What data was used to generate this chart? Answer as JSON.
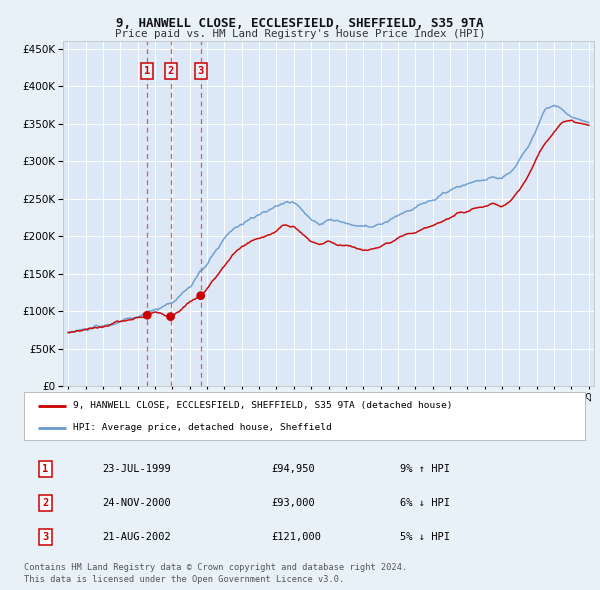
{
  "title_line1": "9, HANWELL CLOSE, ECCLESFIELD, SHEFFIELD, S35 9TA",
  "title_line2": "Price paid vs. HM Land Registry's House Price Index (HPI)",
  "legend_label_red": "9, HANWELL CLOSE, ECCLESFIELD, SHEFFIELD, S35 9TA (detached house)",
  "legend_label_blue": "HPI: Average price, detached house, Sheffield",
  "transactions": [
    {
      "num": 1,
      "date": "23-JUL-1999",
      "price": 94950,
      "pct": "9%",
      "dir": "↑"
    },
    {
      "num": 2,
      "date": "24-NOV-2000",
      "price": 93000,
      "pct": "6%",
      "dir": "↓"
    },
    {
      "num": 3,
      "date": "21-AUG-2002",
      "price": 121000,
      "pct": "5%",
      "dir": "↓"
    }
  ],
  "transaction_dates_decimal": [
    1999.555,
    2000.899,
    2002.638
  ],
  "transaction_prices": [
    94950,
    93000,
    121000
  ],
  "footnote_line1": "Contains HM Land Registry data © Crown copyright and database right 2024.",
  "footnote_line2": "This data is licensed under the Open Government Licence v3.0.",
  "background_color": "#e8f0f8",
  "plot_bg_color": "#dce8f5",
  "red_color": "#cc0000",
  "blue_color": "#6699cc",
  "grid_color": "#ffffff",
  "vline_color": "#dd4444",
  "ylim": [
    0,
    460000
  ],
  "yticks": [
    0,
    50000,
    100000,
    150000,
    200000,
    250000,
    300000,
    350000,
    400000,
    450000
  ],
  "start_year": 1995,
  "end_year": 2025,
  "hpi_keypoints": [
    [
      1995.0,
      72000
    ],
    [
      1996.0,
      76000
    ],
    [
      1997.0,
      80000
    ],
    [
      1998.0,
      86000
    ],
    [
      1999.0,
      93000
    ],
    [
      1999.5,
      97000
    ],
    [
      2000.0,
      103000
    ],
    [
      2000.5,
      107000
    ],
    [
      2001.0,
      113000
    ],
    [
      2001.5,
      122000
    ],
    [
      2002.0,
      133000
    ],
    [
      2002.5,
      147000
    ],
    [
      2003.0,
      163000
    ],
    [
      2003.5,
      180000
    ],
    [
      2004.0,
      196000
    ],
    [
      2004.5,
      210000
    ],
    [
      2005.0,
      218000
    ],
    [
      2005.5,
      223000
    ],
    [
      2006.0,
      228000
    ],
    [
      2006.5,
      234000
    ],
    [
      2007.0,
      240000
    ],
    [
      2007.5,
      247000
    ],
    [
      2008.0,
      245000
    ],
    [
      2008.5,
      235000
    ],
    [
      2009.0,
      222000
    ],
    [
      2009.5,
      218000
    ],
    [
      2010.0,
      222000
    ],
    [
      2010.5,
      220000
    ],
    [
      2011.0,
      218000
    ],
    [
      2011.5,
      215000
    ],
    [
      2012.0,
      212000
    ],
    [
      2012.5,
      213000
    ],
    [
      2013.0,
      215000
    ],
    [
      2013.5,
      220000
    ],
    [
      2014.0,
      227000
    ],
    [
      2014.5,
      234000
    ],
    [
      2015.0,
      238000
    ],
    [
      2015.5,
      243000
    ],
    [
      2016.0,
      248000
    ],
    [
      2016.5,
      255000
    ],
    [
      2017.0,
      261000
    ],
    [
      2017.5,
      267000
    ],
    [
      2018.0,
      270000
    ],
    [
      2018.5,
      273000
    ],
    [
      2019.0,
      276000
    ],
    [
      2019.5,
      280000
    ],
    [
      2020.0,
      278000
    ],
    [
      2020.5,
      285000
    ],
    [
      2021.0,
      300000
    ],
    [
      2021.5,
      320000
    ],
    [
      2022.0,
      345000
    ],
    [
      2022.5,
      370000
    ],
    [
      2023.0,
      375000
    ],
    [
      2023.5,
      368000
    ],
    [
      2024.0,
      360000
    ],
    [
      2024.5,
      355000
    ],
    [
      2025.0,
      352000
    ]
  ],
  "red_keypoints": [
    [
      1995.0,
      72000
    ],
    [
      1996.0,
      76000
    ],
    [
      1997.0,
      80000
    ],
    [
      1998.0,
      86000
    ],
    [
      1999.0,
      91000
    ],
    [
      1999.555,
      94950
    ],
    [
      2000.0,
      98000
    ],
    [
      2000.5,
      98000
    ],
    [
      2000.899,
      93000
    ],
    [
      2001.0,
      94000
    ],
    [
      2001.5,
      103000
    ],
    [
      2002.0,
      112000
    ],
    [
      2002.638,
      121000
    ],
    [
      2003.0,
      130000
    ],
    [
      2003.5,
      145000
    ],
    [
      2004.0,
      160000
    ],
    [
      2004.5,
      175000
    ],
    [
      2005.0,
      186000
    ],
    [
      2005.5,
      192000
    ],
    [
      2006.0,
      197000
    ],
    [
      2006.5,
      202000
    ],
    [
      2007.0,
      208000
    ],
    [
      2007.5,
      215000
    ],
    [
      2008.0,
      213000
    ],
    [
      2008.5,
      204000
    ],
    [
      2009.0,
      193000
    ],
    [
      2009.5,
      190000
    ],
    [
      2010.0,
      192000
    ],
    [
      2010.5,
      190000
    ],
    [
      2011.0,
      188000
    ],
    [
      2011.5,
      185000
    ],
    [
      2012.0,
      182000
    ],
    [
      2012.5,
      183000
    ],
    [
      2013.0,
      185000
    ],
    [
      2013.5,
      190000
    ],
    [
      2014.0,
      196000
    ],
    [
      2014.5,
      202000
    ],
    [
      2015.0,
      206000
    ],
    [
      2015.5,
      210000
    ],
    [
      2016.0,
      214000
    ],
    [
      2016.5,
      220000
    ],
    [
      2017.0,
      225000
    ],
    [
      2017.5,
      231000
    ],
    [
      2018.0,
      234000
    ],
    [
      2018.5,
      237000
    ],
    [
      2019.0,
      240000
    ],
    [
      2019.5,
      243000
    ],
    [
      2020.0,
      241000
    ],
    [
      2020.5,
      248000
    ],
    [
      2021.0,
      262000
    ],
    [
      2021.5,
      280000
    ],
    [
      2022.0,
      305000
    ],
    [
      2022.5,
      325000
    ],
    [
      2023.0,
      340000
    ],
    [
      2023.5,
      352000
    ],
    [
      2024.0,
      355000
    ],
    [
      2024.5,
      350000
    ],
    [
      2025.0,
      348000
    ]
  ]
}
